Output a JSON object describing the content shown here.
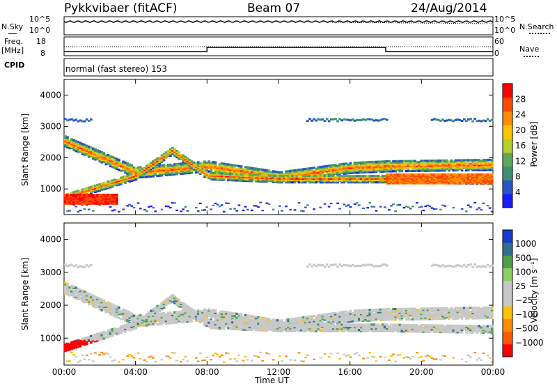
{
  "header": {
    "station": "Pykkvibaer (fitACF)",
    "beam": "Beam 07",
    "date": "24/Aug/2014"
  },
  "noise_panel": {
    "left_label": "N.Sky",
    "right_label": "N.Search",
    "ticks_left": [
      "10^5",
      "10^0"
    ],
    "ticks_right": [
      "10^5",
      "10^0"
    ]
  },
  "freq_panel": {
    "left_label_top": "Freq.",
    "left_label_unit": "[MHz]",
    "right_label": "Nave",
    "ticks_left": [
      "18",
      "8"
    ],
    "ticks_right": [
      "60",
      "0"
    ]
  },
  "cpid_panel": {
    "label": "CPID",
    "text": "normal (fast stereo) 153"
  },
  "chart_data": [
    {
      "type": "heatmap",
      "name": "power",
      "ylabel": "Slant Range [km]",
      "ylim": [
        180,
        4500
      ],
      "y_ticks": [
        1000,
        2000,
        3000,
        4000
      ],
      "x_ticks": [
        "00:00",
        "04:00",
        "08:00",
        "12:00",
        "16:00",
        "20:00",
        "00:00"
      ],
      "xlim_hours": [
        0,
        24
      ],
      "colorbar": {
        "label": "Power [dB]",
        "ticks": [
          "4",
          "8",
          "12",
          "16",
          "20",
          "24",
          "28"
        ],
        "colors": [
          "#1a1aff",
          "#2855c8",
          "#3c8f73",
          "#5caa58",
          "#b7cf2c",
          "#ffc400",
          "#ff8c00",
          "#ff4a00",
          "#ff0000"
        ]
      },
      "features": [
        {
          "desc": "ground echo band",
          "ranges": [
            [
              0,
              2500
            ],
            [
              4,
              1500
            ],
            [
              8,
              1700
            ],
            [
              12,
              1350
            ],
            [
              16,
              1650
            ],
            [
              18,
              1700
            ],
            [
              24,
              1750
            ]
          ]
        },
        {
          "desc": "lower band",
          "ranges": [
            [
              0,
              700
            ],
            [
              4,
              1400
            ],
            [
              6,
              2200
            ],
            [
              8,
              1400
            ],
            [
              12,
              1300
            ],
            [
              18,
              1300
            ],
            [
              24,
              1250
            ]
          ]
        }
      ]
    },
    {
      "type": "heatmap",
      "name": "velocity",
      "ylabel": "Slant Range [km]",
      "ylim": [
        180,
        4500
      ],
      "y_ticks": [
        1000,
        2000,
        3000,
        4000
      ],
      "x_ticks": [
        "00:00",
        "04:00",
        "08:00",
        "12:00",
        "16:00",
        "20:00",
        "00:00"
      ],
      "xlabel": "Time UT",
      "colorbar": {
        "label": "Velocity [m s⁻¹]",
        "ticks": [
          "1000",
          "500",
          "100",
          "25",
          "−25",
          "−100",
          "−500",
          "−1000"
        ],
        "colors": [
          "#1a3ad0",
          "#2f6e8f",
          "#4aa04a",
          "#8cd060",
          "#c8c8c8",
          "#c8c8c8",
          "#ffc000",
          "#ff8c00",
          "#ff5a00",
          "#ff0000"
        ]
      }
    }
  ]
}
